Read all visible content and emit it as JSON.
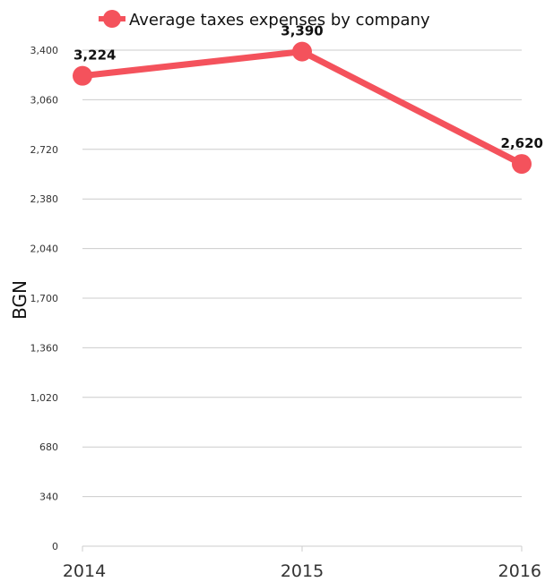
{
  "chart_data": {
    "type": "line",
    "title": "",
    "xlabel": "",
    "ylabel": "BGN",
    "categories": [
      "2014",
      "2015",
      "2016"
    ],
    "series": [
      {
        "name": "Average taxes expenses by company",
        "values": [
          3224,
          3390,
          2620
        ],
        "color": "#f4525c"
      }
    ],
    "data_labels": [
      "3,224",
      "3,390",
      "2,620"
    ],
    "yticks": [
      0,
      340,
      680,
      1020,
      1360,
      1700,
      2040,
      2380,
      2720,
      3060,
      3400
    ],
    "ytick_labels": [
      "0",
      "340",
      "680",
      "1,020",
      "1,360",
      "1,700",
      "2,040",
      "2,380",
      "2,720",
      "3,060",
      "3,400"
    ],
    "ylim": [
      0,
      3400
    ],
    "grid": true,
    "legend_position": "top"
  }
}
